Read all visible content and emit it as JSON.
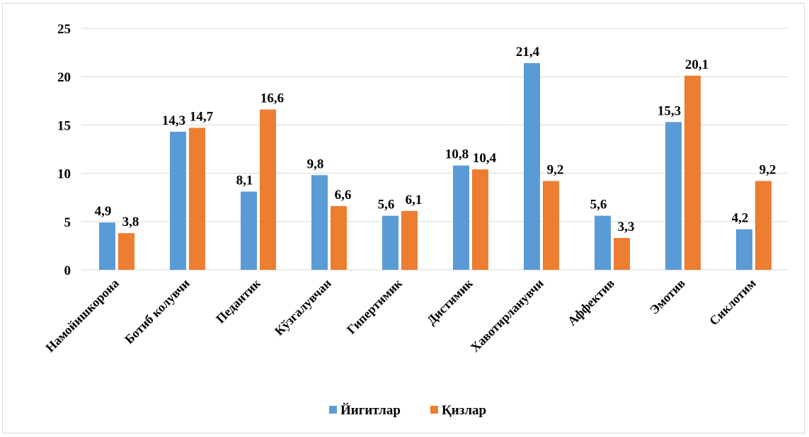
{
  "chart_data": {
    "type": "bar",
    "title": "",
    "xlabel": "",
    "ylabel": "",
    "ylim": [
      0,
      25
    ],
    "yticks": [
      0,
      5,
      10,
      15,
      20,
      25
    ],
    "grid": true,
    "legend_position": "bottom",
    "categories": [
      "Намойишкорона",
      "Ботиб колувчи",
      "Педантик",
      "Кўзгалувчан",
      "Гипертимик",
      "Дистимик",
      "Хавотирланувчи",
      "Аффектив",
      "Эмотив",
      "Сиклотим"
    ],
    "series": [
      {
        "name": "Йигитлар",
        "color": "#5b9bd5",
        "values": [
          4.9,
          14.3,
          8.1,
          9.8,
          5.6,
          10.8,
          21.4,
          5.6,
          15.3,
          4.2
        ],
        "labels": [
          "4,9",
          "14,3",
          "8,1",
          "9,8",
          "5,6",
          "10,8",
          "21,4",
          "5,6",
          "15,3",
          "4,2"
        ]
      },
      {
        "name": "Қизлар",
        "color": "#ed7d31",
        "values": [
          3.8,
          14.7,
          16.6,
          6.6,
          6.1,
          10.4,
          9.2,
          3.3,
          20.1,
          9.2
        ],
        "labels": [
          "3,8",
          "14,7",
          "16,6",
          "6,6",
          "6,1",
          "10,4",
          "9,2",
          "3,3",
          "20,1",
          "9,2"
        ]
      }
    ],
    "gridline_color": "#d9d9d9"
  }
}
